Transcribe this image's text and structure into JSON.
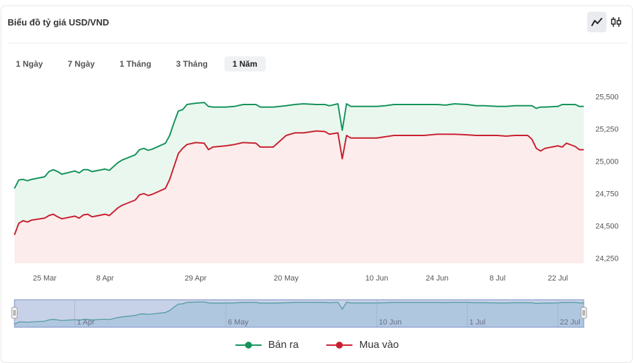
{
  "header": {
    "title": "Biểu đồ tỷ giá USD/VND",
    "toggles": [
      {
        "name": "line-chart-icon",
        "active": true
      },
      {
        "name": "candlestick-chart-icon",
        "active": false
      }
    ]
  },
  "periods": [
    {
      "label": "1 Ngày",
      "active": false
    },
    {
      "label": "7 Ngày",
      "active": false
    },
    {
      "label": "1 Tháng",
      "active": false
    },
    {
      "label": "3 Tháng",
      "active": false
    },
    {
      "label": "1 Năm",
      "active": true
    }
  ],
  "chart_data": {
    "type": "area",
    "x_ticks": [
      "25 Mar",
      "8 Apr",
      "29 Apr",
      "20 May",
      "10 Jun",
      "24 Jun",
      "8 Jul",
      "22 Jul"
    ],
    "y_ticks": [
      25500,
      25250,
      25000,
      24750,
      24500,
      24250
    ],
    "y_tick_labels": [
      "25,500",
      "25,250",
      "25,000",
      "24,750",
      "24,500",
      "24,250"
    ],
    "ylim": [
      24210,
      25690
    ],
    "x_range": [
      "2024-03-18",
      "2024-07-28"
    ],
    "series": [
      {
        "name": "Bán ra",
        "color": "#14935a",
        "fill": "#eaf7ef",
        "points": [
          [
            "2024-03-18",
            24790
          ],
          [
            "2024-03-19",
            24855
          ],
          [
            "2024-03-20",
            24860
          ],
          [
            "2024-03-21",
            24850
          ],
          [
            "2024-03-22",
            24860
          ],
          [
            "2024-03-25",
            24880
          ],
          [
            "2024-03-26",
            24920
          ],
          [
            "2024-03-27",
            24935
          ],
          [
            "2024-03-28",
            24920
          ],
          [
            "2024-03-29",
            24900
          ],
          [
            "2024-04-01",
            24925
          ],
          [
            "2024-04-02",
            24910
          ],
          [
            "2024-04-03",
            24935
          ],
          [
            "2024-04-04",
            24935
          ],
          [
            "2024-04-05",
            24920
          ],
          [
            "2024-04-08",
            24940
          ],
          [
            "2024-04-09",
            24930
          ],
          [
            "2024-04-10",
            24960
          ],
          [
            "2024-04-11",
            24990
          ],
          [
            "2024-04-12",
            25010
          ],
          [
            "2024-04-15",
            25050
          ],
          [
            "2024-04-16",
            25090
          ],
          [
            "2024-04-17",
            25100
          ],
          [
            "2024-04-18",
            25085
          ],
          [
            "2024-04-19",
            25095
          ],
          [
            "2024-04-22",
            25140
          ],
          [
            "2024-04-23",
            25200
          ],
          [
            "2024-04-24",
            25300
          ],
          [
            "2024-04-25",
            25390
          ],
          [
            "2024-04-26",
            25400
          ],
          [
            "2024-04-27",
            25440
          ],
          [
            "2024-04-29",
            25450
          ],
          [
            "2024-05-01",
            25455
          ],
          [
            "2024-05-02",
            25425
          ],
          [
            "2024-05-03",
            25420
          ],
          [
            "2024-05-06",
            25420
          ],
          [
            "2024-05-08",
            25425
          ],
          [
            "2024-05-10",
            25440
          ],
          [
            "2024-05-13",
            25440
          ],
          [
            "2024-05-14",
            25420
          ],
          [
            "2024-05-15",
            25420
          ],
          [
            "2024-05-17",
            25420
          ],
          [
            "2024-05-20",
            25430
          ],
          [
            "2024-05-22",
            25440
          ],
          [
            "2024-05-24",
            25445
          ],
          [
            "2024-05-27",
            25440
          ],
          [
            "2024-05-29",
            25440
          ],
          [
            "2024-05-30",
            25430
          ],
          [
            "2024-06-01",
            25445
          ],
          [
            "2024-06-02",
            25240
          ],
          [
            "2024-06-03",
            25445
          ],
          [
            "2024-06-04",
            25425
          ],
          [
            "2024-06-07",
            25425
          ],
          [
            "2024-06-10",
            25425
          ],
          [
            "2024-06-12",
            25430
          ],
          [
            "2024-06-14",
            25440
          ],
          [
            "2024-06-17",
            25440
          ],
          [
            "2024-06-19",
            25440
          ],
          [
            "2024-06-21",
            25440
          ],
          [
            "2024-06-24",
            25440
          ],
          [
            "2024-06-26",
            25435
          ],
          [
            "2024-06-28",
            25445
          ],
          [
            "2024-07-01",
            25440
          ],
          [
            "2024-07-03",
            25430
          ],
          [
            "2024-07-05",
            25430
          ],
          [
            "2024-07-08",
            25425
          ],
          [
            "2024-07-10",
            25425
          ],
          [
            "2024-07-12",
            25430
          ],
          [
            "2024-07-15",
            25430
          ],
          [
            "2024-07-16",
            25430
          ],
          [
            "2024-07-17",
            25410
          ],
          [
            "2024-07-18",
            25420
          ],
          [
            "2024-07-19",
            25420
          ],
          [
            "2024-07-22",
            25425
          ],
          [
            "2024-07-23",
            25440
          ],
          [
            "2024-07-24",
            25440
          ],
          [
            "2024-07-26",
            25440
          ],
          [
            "2024-07-27",
            25425
          ],
          [
            "2024-07-28",
            25425
          ]
        ]
      },
      {
        "name": "Mua vào",
        "color": "#c8202e",
        "fill": "#fdecec",
        "points": [
          [
            "2024-03-18",
            24430
          ],
          [
            "2024-03-19",
            24520
          ],
          [
            "2024-03-20",
            24540
          ],
          [
            "2024-03-21",
            24530
          ],
          [
            "2024-03-22",
            24545
          ],
          [
            "2024-03-25",
            24560
          ],
          [
            "2024-03-26",
            24580
          ],
          [
            "2024-03-27",
            24590
          ],
          [
            "2024-03-28",
            24570
          ],
          [
            "2024-03-29",
            24555
          ],
          [
            "2024-04-01",
            24575
          ],
          [
            "2024-04-02",
            24560
          ],
          [
            "2024-04-03",
            24585
          ],
          [
            "2024-04-04",
            24590
          ],
          [
            "2024-04-05",
            24570
          ],
          [
            "2024-04-08",
            24590
          ],
          [
            "2024-04-09",
            24580
          ],
          [
            "2024-04-10",
            24610
          ],
          [
            "2024-04-11",
            24640
          ],
          [
            "2024-04-12",
            24660
          ],
          [
            "2024-04-15",
            24700
          ],
          [
            "2024-04-16",
            24740
          ],
          [
            "2024-04-17",
            24750
          ],
          [
            "2024-04-18",
            24735
          ],
          [
            "2024-04-19",
            24745
          ],
          [
            "2024-04-22",
            24790
          ],
          [
            "2024-04-23",
            24860
          ],
          [
            "2024-04-24",
            24960
          ],
          [
            "2024-04-25",
            25060
          ],
          [
            "2024-04-26",
            25100
          ],
          [
            "2024-04-27",
            25130
          ],
          [
            "2024-04-29",
            25145
          ],
          [
            "2024-05-01",
            25140
          ],
          [
            "2024-05-02",
            25090
          ],
          [
            "2024-05-03",
            25110
          ],
          [
            "2024-05-06",
            25120
          ],
          [
            "2024-05-08",
            25130
          ],
          [
            "2024-05-10",
            25145
          ],
          [
            "2024-05-13",
            25140
          ],
          [
            "2024-05-14",
            25110
          ],
          [
            "2024-05-15",
            25110
          ],
          [
            "2024-05-17",
            25110
          ],
          [
            "2024-05-20",
            25200
          ],
          [
            "2024-05-22",
            25220
          ],
          [
            "2024-05-24",
            25220
          ],
          [
            "2024-05-27",
            25235
          ],
          [
            "2024-05-29",
            25230
          ],
          [
            "2024-05-30",
            25210
          ],
          [
            "2024-06-01",
            25220
          ],
          [
            "2024-06-02",
            25020
          ],
          [
            "2024-06-03",
            25200
          ],
          [
            "2024-06-04",
            25180
          ],
          [
            "2024-06-07",
            25180
          ],
          [
            "2024-06-10",
            25180
          ],
          [
            "2024-06-12",
            25190
          ],
          [
            "2024-06-14",
            25200
          ],
          [
            "2024-06-17",
            25200
          ],
          [
            "2024-06-19",
            25200
          ],
          [
            "2024-06-21",
            25200
          ],
          [
            "2024-06-24",
            25210
          ],
          [
            "2024-06-26",
            25210
          ],
          [
            "2024-06-28",
            25210
          ],
          [
            "2024-07-01",
            25205
          ],
          [
            "2024-07-03",
            25200
          ],
          [
            "2024-07-05",
            25200
          ],
          [
            "2024-07-08",
            25200
          ],
          [
            "2024-07-10",
            25195
          ],
          [
            "2024-07-12",
            25200
          ],
          [
            "2024-07-15",
            25200
          ],
          [
            "2024-07-16",
            25170
          ],
          [
            "2024-07-17",
            25100
          ],
          [
            "2024-07-18",
            25080
          ],
          [
            "2024-07-19",
            25100
          ],
          [
            "2024-07-22",
            25120
          ],
          [
            "2024-07-23",
            25110
          ],
          [
            "2024-07-24",
            25140
          ],
          [
            "2024-07-26",
            25115
          ],
          [
            "2024-07-27",
            25090
          ],
          [
            "2024-07-28",
            25090
          ]
        ]
      }
    ],
    "navigator": {
      "x_ticks": [
        "1 Apr",
        "6 May",
        "10 Jun",
        "1 Jul",
        "22 Jul"
      ]
    },
    "grid": false,
    "legend_placement": "bottom-center"
  },
  "legend": [
    {
      "label": "Bán ra",
      "color": "#14935a"
    },
    {
      "label": "Mua vào",
      "color": "#c8202e"
    }
  ]
}
